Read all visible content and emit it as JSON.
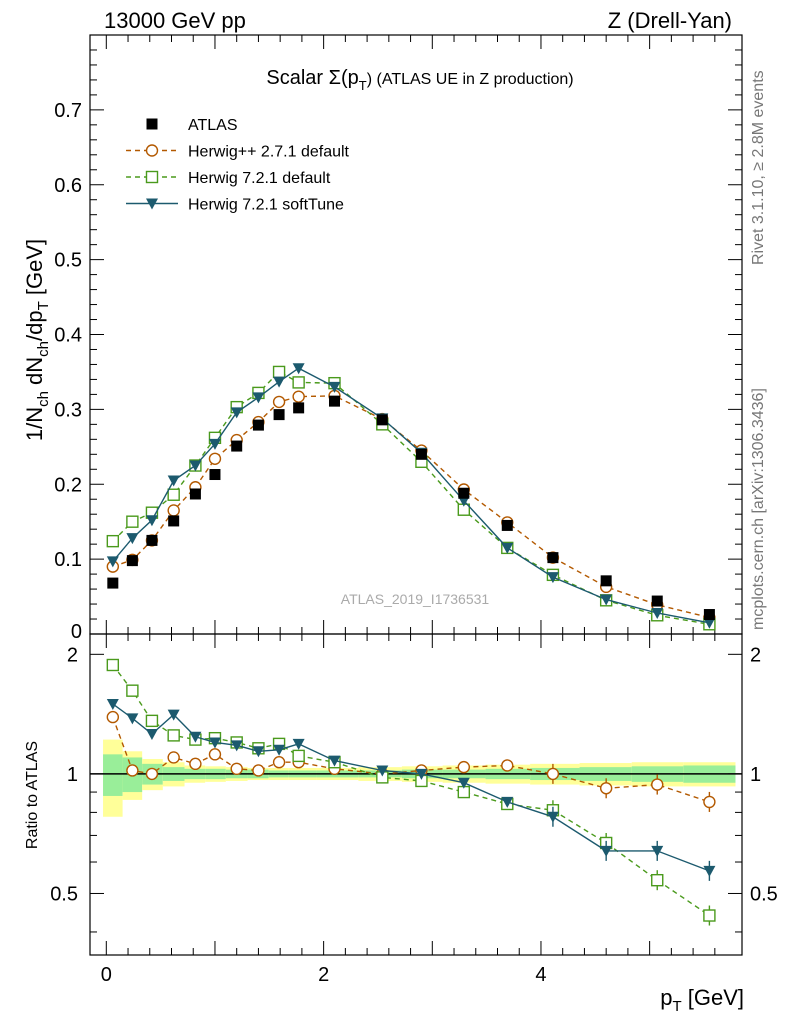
{
  "header": {
    "energy": "13000 GeV pp",
    "process": "Z (Drell-Yan)"
  },
  "side": {
    "rivet": "Rivet 3.1.10, ≥ 2.8M events",
    "mcplots": "mcplots.cern.ch [arXiv:1306.3436]"
  },
  "chart_data": {
    "type": "scatter",
    "title": "Scalar Σ(pT) (ATLAS UE in Z production)",
    "title_parts": {
      "main": "Scalar Σ(p",
      "sub": "T",
      "tail": ") (ATLAS UE in Z production)"
    },
    "analysis_id": "ATLAS_2019_I1736531",
    "xlabel": "p_T [GeV]",
    "xlabel_parts": {
      "main": "p",
      "sub": "T",
      "tail": " [GeV]"
    },
    "ylabel": "1/N_ch dN_ch/dp_T [GeV]",
    "ratio_ylabel": "Ratio to ATLAS",
    "xlim": [
      -0.15,
      5.85
    ],
    "ylim": [
      0,
      0.8
    ],
    "ratio_ylim": [
      0.35,
      2.25
    ],
    "xticks": [
      0,
      2,
      4
    ],
    "yticks": [
      0.1,
      0.2,
      0.3,
      0.4,
      0.5,
      0.6,
      0.7
    ],
    "yticks_bottom_label": "0",
    "ratio_yticks": [
      0.5,
      1,
      2
    ],
    "x": [
      0.06,
      0.24,
      0.42,
      0.62,
      0.82,
      1.0,
      1.2,
      1.4,
      1.59,
      1.77,
      2.1,
      2.54,
      2.9,
      3.29,
      3.69,
      4.11,
      4.6,
      5.07,
      5.55
    ],
    "data": {
      "name": "ATLAS",
      "values": [
        0.068,
        0.098,
        0.125,
        0.151,
        0.187,
        0.213,
        0.251,
        0.279,
        0.293,
        0.302,
        0.311,
        0.286,
        0.24,
        0.188,
        0.145,
        0.102,
        0.071,
        0.044,
        0.026
      ]
    },
    "band": {
      "inner_half": [
        0.12,
        0.1,
        0.06,
        0.04,
        0.03,
        0.03,
        0.025,
        0.025,
        0.02,
        0.02,
        0.02,
        0.02,
        0.025,
        0.025,
        0.03,
        0.035,
        0.04,
        0.045,
        0.05
      ],
      "outer_half": [
        0.22,
        0.14,
        0.09,
        0.07,
        0.05,
        0.045,
        0.04,
        0.035,
        0.035,
        0.035,
        0.035,
        0.04,
        0.045,
        0.05,
        0.055,
        0.06,
        0.065,
        0.07,
        0.07
      ]
    },
    "series": [
      {
        "name": "Herwig++ 2.7.1 default",
        "color": "#b35900",
        "marker": "circle",
        "dash": "5,4",
        "values": [
          0.09,
          0.099,
          0.125,
          0.165,
          0.196,
          0.234,
          0.259,
          0.283,
          0.31,
          0.317,
          0.318,
          0.287,
          0.245,
          0.193,
          0.149,
          0.102,
          0.063,
          0.039,
          0.022
        ],
        "ratio": [
          1.39,
          1.02,
          1.0,
          1.1,
          1.06,
          1.12,
          1.03,
          1.02,
          1.07,
          1.07,
          1.03,
          1.0,
          1.02,
          1.04,
          1.05,
          1.0,
          0.92,
          0.94,
          0.85
        ]
      },
      {
        "name": "Herwig 7.2.1 default",
        "color": "#4a9a1c",
        "marker": "square",
        "dash": "5,4",
        "values": [
          0.124,
          0.15,
          0.162,
          0.186,
          0.225,
          0.262,
          0.303,
          0.322,
          0.35,
          0.336,
          0.335,
          0.28,
          0.23,
          0.166,
          0.115,
          0.079,
          0.045,
          0.025,
          0.013
        ],
        "ratio": [
          1.88,
          1.62,
          1.36,
          1.25,
          1.22,
          1.23,
          1.2,
          1.16,
          1.19,
          1.11,
          1.07,
          0.98,
          0.96,
          0.9,
          0.84,
          0.81,
          0.67,
          0.54,
          0.44
        ]
      },
      {
        "name": "Herwig 7.2.1 softTune",
        "color": "#1c5a6e",
        "marker": "triangle-down",
        "dash": "",
        "values": [
          0.097,
          0.128,
          0.152,
          0.205,
          0.225,
          0.254,
          0.296,
          0.316,
          0.337,
          0.355,
          0.33,
          0.288,
          0.242,
          0.178,
          0.115,
          0.076,
          0.046,
          0.028,
          0.015
        ],
        "ratio": [
          1.5,
          1.38,
          1.26,
          1.41,
          1.24,
          1.2,
          1.18,
          1.14,
          1.15,
          1.19,
          1.08,
          1.02,
          1.0,
          0.95,
          0.85,
          0.78,
          0.64,
          0.64,
          0.57
        ]
      }
    ],
    "legend": "top-left"
  }
}
